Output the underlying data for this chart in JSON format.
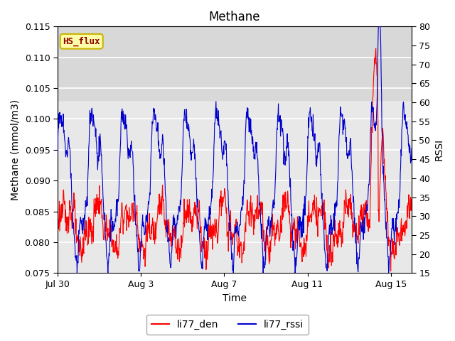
{
  "title": "Methane",
  "xlabel": "Time",
  "ylabel_left": "Methane (mmol/m3)",
  "ylabel_right": "RSSI",
  "ylim_left": [
    0.075,
    0.115
  ],
  "ylim_right": [
    15,
    80
  ],
  "yticks_left": [
    0.075,
    0.08,
    0.085,
    0.09,
    0.095,
    0.1,
    0.105,
    0.11,
    0.115
  ],
  "yticks_right": [
    15,
    20,
    25,
    30,
    35,
    40,
    45,
    50,
    55,
    60,
    65,
    70,
    75,
    80
  ],
  "xtick_labels": [
    "Jul 30",
    "Aug 3",
    "Aug 7",
    "Aug 11",
    "Aug 15"
  ],
  "xtick_positions": [
    0,
    4,
    8,
    12,
    16
  ],
  "color_red": "#ff0000",
  "color_blue": "#0000cc",
  "legend_labels": [
    "li77_den",
    "li77_rssi"
  ],
  "annotation_text": "HS_flux",
  "annotation_color": "#8b0000",
  "annotation_bg": "#ffffaa",
  "annotation_border": "#c8b400",
  "plot_bg": "#e8e8e8",
  "plot_bg_top": "#d8d8d8",
  "fig_bg": "#ffffff",
  "grid_color": "#ffffff",
  "title_fontsize": 12,
  "axis_fontsize": 10,
  "tick_fontsize": 9,
  "n_days": 17,
  "n_points": 1000
}
